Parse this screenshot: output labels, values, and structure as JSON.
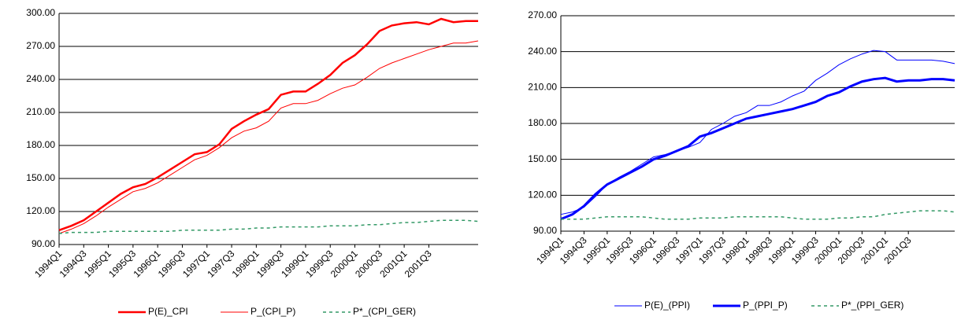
{
  "chart_data": [
    {
      "type": "line",
      "categories": [
        "1994Q1",
        null,
        "1994Q3",
        null,
        "1995Q1",
        null,
        "1995Q3",
        null,
        "1996Q1",
        null,
        "1996Q3",
        null,
        "1997Q1",
        null,
        "1997Q3",
        null,
        "1998Q1",
        null,
        "1998Q3",
        null,
        "1999Q1",
        null,
        "1999Q3",
        null,
        "2000Q1",
        null,
        "2000Q3",
        null,
        "2001Q1",
        null,
        "2001Q3",
        null,
        null,
        null,
        null
      ],
      "ylim": [
        90,
        300
      ],
      "yticks": [
        {
          "value": 90,
          "label": "90.00"
        },
        {
          "value": 120,
          "label": "120.00"
        },
        {
          "value": 150,
          "label": "150.00"
        },
        {
          "value": 180,
          "label": "180.00"
        },
        {
          "value": 210,
          "label": "210.00"
        },
        {
          "value": 240,
          "label": "240.00"
        },
        {
          "value": 270,
          "label": "270.00"
        },
        {
          "value": 300,
          "label": "300.00"
        }
      ],
      "grid": true,
      "legend": "bottom",
      "series": [
        {
          "name": "P(E)_CPI",
          "color": "#ff0000",
          "line_width": 2.5,
          "dashed": false,
          "values": [
            103,
            107,
            112,
            120,
            128,
            136,
            142,
            145,
            151,
            158,
            165,
            172,
            174,
            181,
            195,
            202,
            208,
            213,
            226,
            229,
            229,
            236,
            244,
            255,
            262,
            272,
            284,
            289,
            291,
            292,
            290,
            295,
            292,
            293,
            293
          ]
        },
        {
          "name": "P_(CPI_P)",
          "color": "#ff0000",
          "line_width": 1,
          "dashed": false,
          "values": [
            100,
            104,
            109,
            116,
            124,
            131,
            138,
            141,
            146,
            153,
            160,
            167,
            171,
            178,
            187,
            193,
            196,
            202,
            214,
            218,
            218,
            221,
            227,
            232,
            235,
            242,
            250,
            255,
            259,
            263,
            267,
            270,
            273,
            273,
            275
          ]
        },
        {
          "name": "P*_(CPI_GER)",
          "color": "#339966",
          "line_width": 1.5,
          "dashed": true,
          "values": [
            100,
            101,
            101,
            101,
            102,
            102,
            102,
            102,
            102,
            102,
            103,
            103,
            103,
            103,
            104,
            104,
            105,
            105,
            106,
            106,
            106,
            106,
            107,
            107,
            107,
            108,
            108,
            109,
            110,
            110,
            111,
            112,
            112,
            112,
            111
          ]
        }
      ]
    },
    {
      "type": "line",
      "categories": [
        "1994Q1",
        null,
        "1994Q3",
        null,
        "1995Q1",
        null,
        "1995Q3",
        null,
        "1996Q1",
        null,
        "1996Q3",
        null,
        "1997Q1",
        null,
        "1997Q3",
        null,
        "1998Q1",
        null,
        "1998Q3",
        null,
        "1999Q1",
        null,
        "1999Q3",
        null,
        "2000Q1",
        null,
        "2000Q3",
        null,
        "2001Q1",
        null,
        "2001Q3",
        null,
        null,
        null,
        null
      ],
      "ylim": [
        90,
        270
      ],
      "yticks": [
        {
          "value": 90,
          "label": "90.00"
        },
        {
          "value": 120,
          "label": "120.00"
        },
        {
          "value": 150,
          "label": "150.00"
        },
        {
          "value": 180,
          "label": "180.00"
        },
        {
          "value": 210,
          "label": "210.00"
        },
        {
          "value": 240,
          "label": "240.00"
        },
        {
          "value": 270,
          "label": "270.00"
        }
      ],
      "grid": true,
      "legend": "bottom",
      "series": [
        {
          "name": "P(E)_(PPI)",
          "color": "#0000ff",
          "line_width": 1,
          "dashed": false,
          "values": [
            104,
            106,
            110,
            119,
            129,
            135,
            140,
            146,
            152,
            154,
            157,
            160,
            164,
            175,
            180,
            186,
            189,
            195,
            195,
            198,
            203,
            207,
            216,
            222,
            229,
            234,
            238,
            241,
            240,
            233,
            233,
            233,
            233,
            232,
            230
          ]
        },
        {
          "name": "P_(PPI_P)",
          "color": "#0000ff",
          "line_width": 3,
          "dashed": false,
          "values": [
            100,
            104,
            111,
            121,
            129,
            134,
            139,
            144,
            150,
            153,
            157,
            161,
            169,
            172,
            176,
            180,
            184,
            186,
            188,
            190,
            192,
            195,
            198,
            203,
            206,
            211,
            215,
            217,
            218,
            215,
            216,
            216,
            217,
            217,
            216
          ]
        },
        {
          "name": "P*_(PPI_GER)",
          "color": "#339966",
          "line_width": 1.5,
          "dashed": true,
          "values": [
            100,
            100,
            100,
            101,
            102,
            102,
            102,
            102,
            101,
            100,
            100,
            100,
            101,
            101,
            101,
            102,
            102,
            102,
            102,
            102,
            101,
            100,
            100,
            100,
            101,
            101,
            102,
            102,
            104,
            105,
            106,
            107,
            107,
            107,
            106
          ]
        }
      ]
    }
  ]
}
